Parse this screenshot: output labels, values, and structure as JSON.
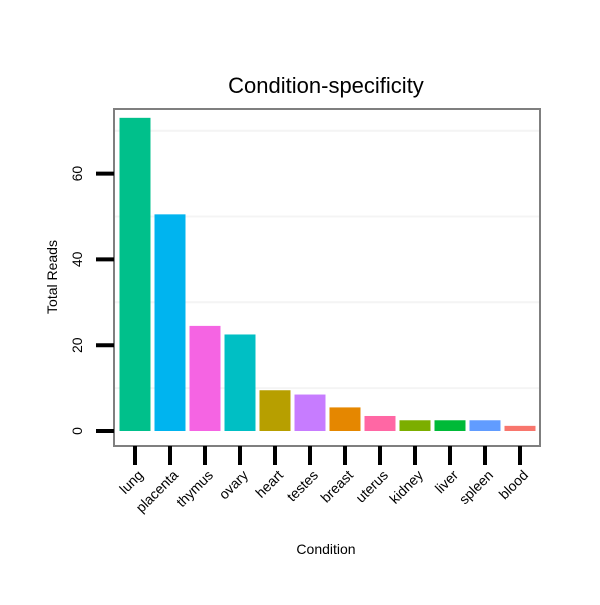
{
  "chart_data": {
    "type": "bar",
    "title": "Condition-specificity",
    "xlabel": "Condition",
    "ylabel": "Total Reads",
    "ylim": [
      0,
      75
    ],
    "yticks": [
      0,
      20,
      40,
      60
    ],
    "grid": true,
    "legend": "none",
    "categories": [
      "lung",
      "placenta",
      "thymus",
      "ovary",
      "heart",
      "testes",
      "breast",
      "uterus",
      "kidney",
      "liver",
      "spleen",
      "blood"
    ],
    "values": [
      73,
      50.5,
      24.5,
      22.5,
      9.5,
      8.5,
      5.5,
      3.5,
      2.5,
      2.5,
      2.5,
      1.2
    ],
    "colors": [
      "#00C08B",
      "#00B4EF",
      "#F564E3",
      "#00BFC4",
      "#B79F00",
      "#C77CFF",
      "#E58700",
      "#FF67A4",
      "#7CAE00",
      "#00BA38",
      "#619CFF",
      "#F8766D"
    ]
  }
}
